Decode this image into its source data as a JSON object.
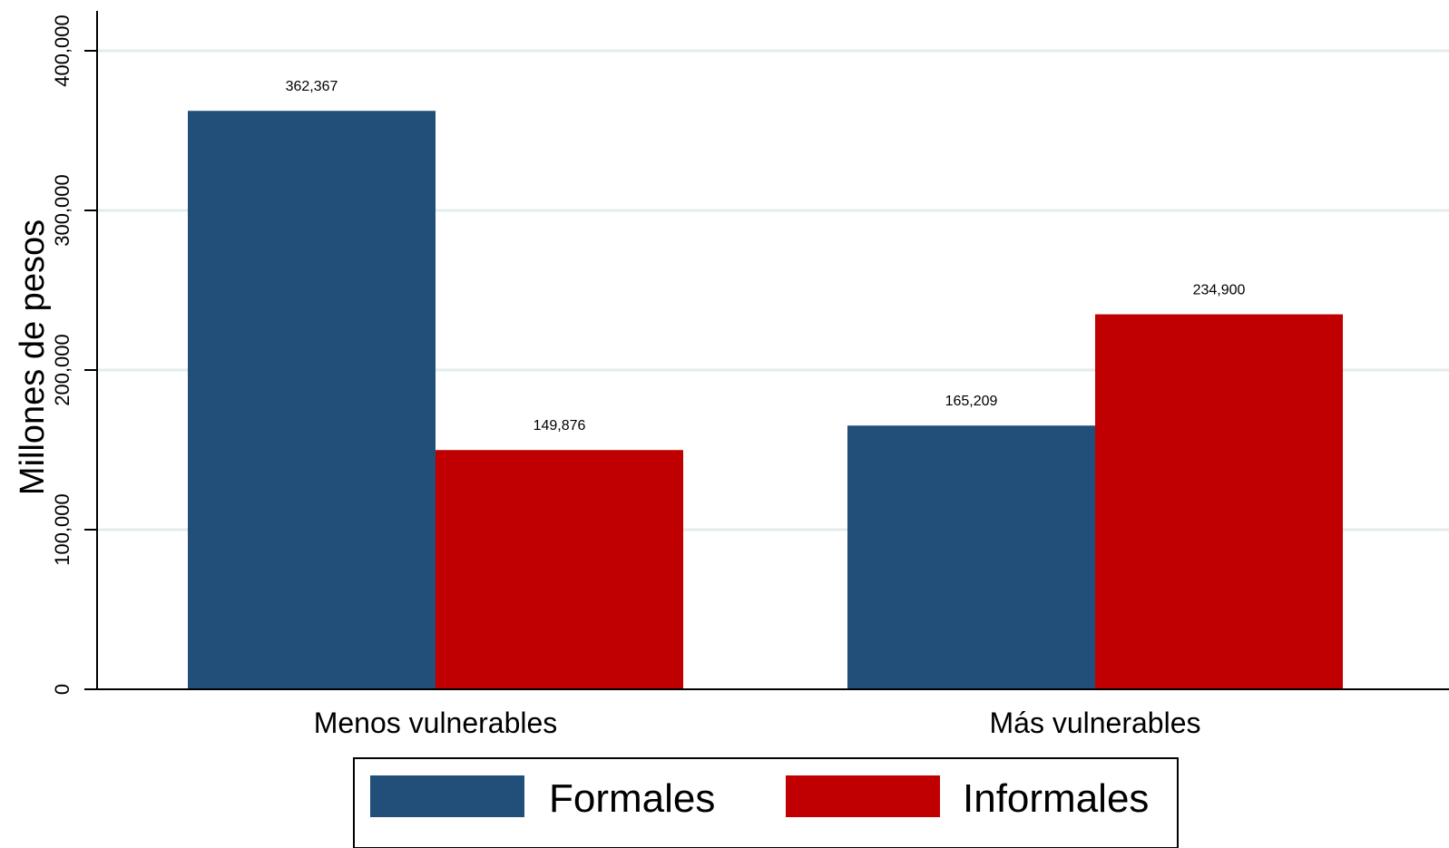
{
  "chart_data": {
    "type": "bar",
    "title": "",
    "xlabel": "",
    "ylabel": "Millones de pesos",
    "ylim": [
      0,
      425000
    ],
    "yticks": [
      0,
      100000,
      200000,
      300000,
      400000
    ],
    "ytick_labels": [
      "0",
      "100,000",
      "200,000",
      "300,000",
      "400,000"
    ],
    "grid": true,
    "categories": [
      "Menos vulnerables",
      "Más vulnerables"
    ],
    "series": [
      {
        "name": "Formales",
        "color": "#224f79",
        "values": [
          362367,
          165209
        ],
        "labels": [
          "362,367",
          "165,209"
        ]
      },
      {
        "name": "Informales",
        "color": "#c00000",
        "values": [
          149876,
          234900
        ],
        "labels": [
          "149,876",
          "234,900"
        ]
      }
    ],
    "legend_position": "bottom"
  }
}
